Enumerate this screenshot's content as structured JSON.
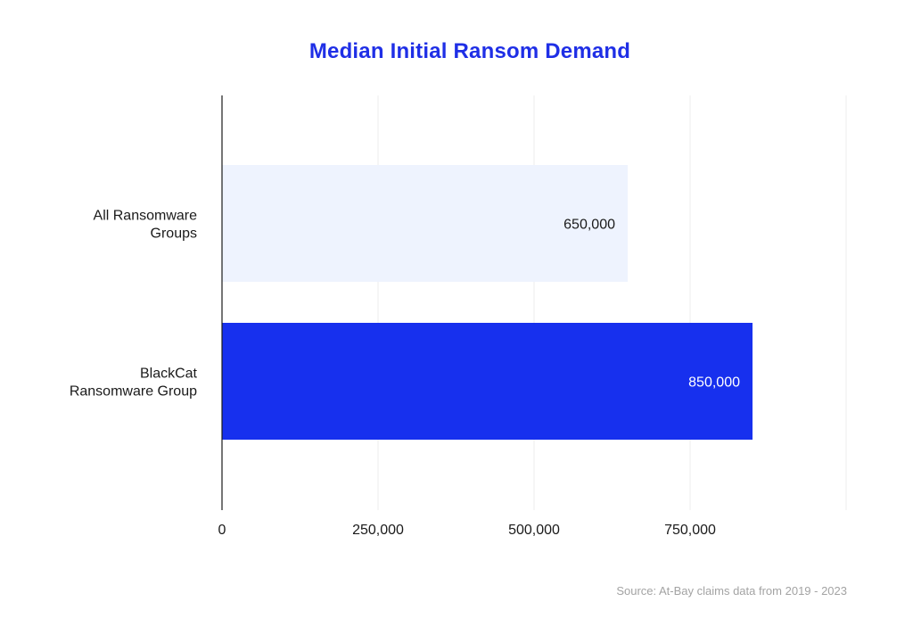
{
  "chart_data": {
    "type": "bar",
    "orientation": "horizontal",
    "title": "Median Initial Ransom Demand",
    "categories": [
      "All Ransomware Groups",
      "BlackCat Ransomware Group"
    ],
    "category_lines": [
      [
        "All Ransomware",
        "Groups"
      ],
      [
        "BlackCat",
        "Ransomware Group"
      ]
    ],
    "values": [
      650000,
      850000
    ],
    "value_labels": [
      "650,000",
      "850,000"
    ],
    "bar_colors": [
      "#eef3fe",
      "#1730ee"
    ],
    "label_colors": [
      "#1a1a1a",
      "#ffffff"
    ],
    "xlim": [
      0,
      1000000
    ],
    "x_ticks": [
      0,
      250000,
      500000,
      750000,
      1000000
    ],
    "x_tick_labels": [
      "0",
      "250,000",
      "500,000",
      "750,000",
      ""
    ],
    "grid": true,
    "xlabel": "",
    "ylabel": ""
  },
  "source_note": "Source: At-Bay claims data from 2019 - 2023",
  "colors": {
    "title": "#1f2fe6",
    "axis": "#1a1a1a",
    "grid": "#ececec",
    "source": "#a3a3a3"
  }
}
